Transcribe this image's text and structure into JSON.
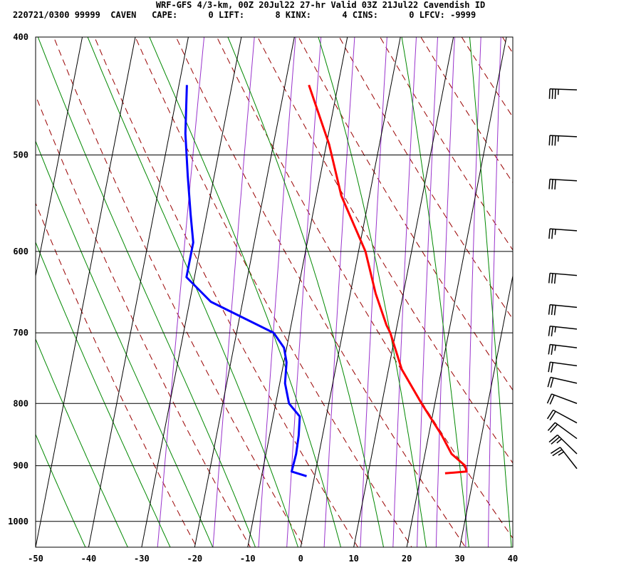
{
  "title_line1": "WRF-GFS 4/3-km, 00Z 20Jul22 27-hr Valid 03Z 21Jul22 Cavendish ID",
  "title_line2": "220721/0300 99999  CAVEN   CAPE:      0 LIFT:      8 KINX:      4 CINS:      0 LFCV: -9999",
  "colors": {
    "temperature": "#ff0000",
    "dewpoint": "#0000ff",
    "dry_adiabat": "#990000",
    "moist_adiabat": "#008800",
    "mixing_ratio": "#9933cc",
    "grid": "#000000",
    "barb": "#000000"
  },
  "chart_data": {
    "type": "skew-t",
    "xlim": [
      -50,
      40
    ],
    "ylim": [
      400,
      1050
    ],
    "x_ticks": [
      -50,
      -40,
      -30,
      -20,
      -10,
      0,
      10,
      20,
      30,
      40
    ],
    "p_ticks": [
      400,
      500,
      600,
      700,
      800,
      900,
      1000
    ],
    "grid": true,
    "series": [
      {
        "key": "temperature",
        "points": [
          [
            438,
            -15.5
          ],
          [
            490,
            -9.5
          ],
          [
            540,
            -5.3
          ],
          [
            600,
            1.3
          ],
          [
            650,
            4.8
          ],
          [
            690,
            8.0
          ],
          [
            700,
            9.0
          ],
          [
            750,
            12.5
          ],
          [
            800,
            17.5
          ],
          [
            850,
            22.5
          ],
          [
            880,
            25.0
          ],
          [
            900,
            28.0
          ],
          [
            910,
            28.5
          ],
          [
            913,
            24.5
          ]
        ]
      },
      {
        "key": "dewpoint",
        "points": [
          [
            438,
            -38.5
          ],
          [
            480,
            -37.0
          ],
          [
            520,
            -35.0
          ],
          [
            560,
            -33.0
          ],
          [
            590,
            -31.5
          ],
          [
            630,
            -31.5
          ],
          [
            660,
            -26.0
          ],
          [
            700,
            -13.0
          ],
          [
            720,
            -10.5
          ],
          [
            740,
            -9.5
          ],
          [
            770,
            -9.0
          ],
          [
            800,
            -7.5
          ],
          [
            820,
            -5.0
          ],
          [
            850,
            -4.5
          ],
          [
            880,
            -4.3
          ],
          [
            910,
            -4.5
          ],
          [
            918,
            -1.5
          ]
        ]
      }
    ],
    "wind_barbs": [
      {
        "p": 442,
        "speed_kt": 35
      },
      {
        "p": 483,
        "speed_kt": 35
      },
      {
        "p": 525,
        "speed_kt": 30
      },
      {
        "p": 577,
        "speed_kt": 25
      },
      {
        "p": 628,
        "speed_kt": 30
      },
      {
        "p": 667,
        "speed_kt": 30
      },
      {
        "p": 695,
        "speed_kt": 25
      },
      {
        "p": 720,
        "speed_kt": 25
      },
      {
        "p": 745,
        "speed_kt": 20
      },
      {
        "p": 770,
        "speed_kt": 20
      },
      {
        "p": 800,
        "speed_kt": 20
      },
      {
        "p": 830,
        "speed_kt": 20
      },
      {
        "p": 855,
        "speed_kt": 20
      },
      {
        "p": 880,
        "speed_kt": 25
      },
      {
        "p": 905,
        "speed_kt": 25
      }
    ]
  }
}
